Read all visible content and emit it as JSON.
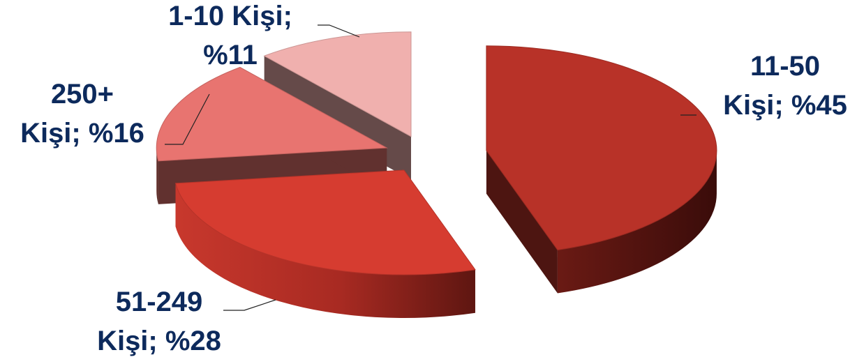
{
  "chart_data": {
    "type": "pie",
    "style": "3d-exploded",
    "title": "",
    "slices": [
      {
        "label": "11-50 Kişi",
        "value": 45,
        "label_lines": [
          "11-50",
          "Kişi; %45"
        ],
        "color": "#b83228"
      },
      {
        "label": "51-249 Kişi",
        "value": 28,
        "label_lines": [
          "51-249",
          "Kişi; %28"
        ],
        "color": "#d63c30"
      },
      {
        "label": "250+ Kişi",
        "value": 16,
        "label_lines": [
          "250+",
          "Kişi; %16"
        ],
        "color": "#e87470"
      },
      {
        "label": "1-10 Kişi",
        "value": 11,
        "label_lines": [
          "1-10 Kişi;",
          "%11"
        ],
        "color": "#f0b0ae"
      }
    ]
  }
}
